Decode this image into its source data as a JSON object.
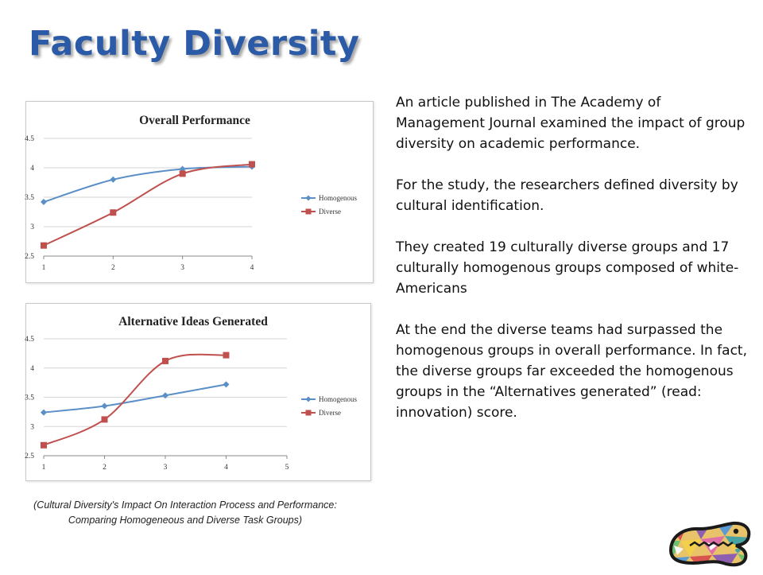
{
  "slide": {
    "title": "Faculty Diversity",
    "paragraphs": [
      "An article published in The Academy of Management Journal examined the impact of group diversity on academic performance.",
      "For the study, the researchers defined diversity by cultural identification.",
      "They created 19 culturally diverse groups and 17 culturally homogenous groups composed of white-Americans",
      "At the end the diverse teams had surpassed the homogenous groups in overall performance.  In fact, the diverse groups far exceeded the homogenous groups in the “Alternatives generated” (read: innovation) score."
    ],
    "caption": "(Cultural Diversity's Impact On Interaction Process and Performance: Comparing Homogeneous and Diverse Task Groups)",
    "logo_icon": "gator-mosaic-logo"
  },
  "chart_data": [
    {
      "type": "line",
      "title": "Overall Performance",
      "xlabel": "",
      "ylabel": "",
      "x": [
        1,
        2,
        3,
        4
      ],
      "xlim": [
        1,
        4
      ],
      "ylim": [
        2.5,
        4.5
      ],
      "xticks": [
        "1",
        "2",
        "3",
        "4"
      ],
      "yticks": [
        "2.5",
        "3",
        "3.5",
        "4",
        "4.5"
      ],
      "grid": "horizontal",
      "legend": "right",
      "series": [
        {
          "name": "Homogenous",
          "values": [
            3.42,
            3.8,
            3.98,
            4.02
          ],
          "color": "#5b8fc7",
          "marker": "diamond"
        },
        {
          "name": "Diverse",
          "values": [
            2.68,
            3.24,
            3.9,
            4.06
          ],
          "color": "#c0504d",
          "marker": "square"
        }
      ]
    },
    {
      "type": "line",
      "title": "Alternative Ideas Generated",
      "xlabel": "",
      "ylabel": "",
      "x": [
        1,
        2,
        3,
        4
      ],
      "xlim": [
        1,
        5
      ],
      "ylim": [
        2.5,
        4.5
      ],
      "xticks": [
        "1",
        "2",
        "3",
        "4",
        "5"
      ],
      "yticks": [
        "2.5",
        "3",
        "3.5",
        "4",
        "4.5"
      ],
      "grid": "horizontal",
      "legend": "right",
      "series": [
        {
          "name": "Homogenous",
          "values": [
            3.24,
            3.35,
            3.53,
            3.72
          ],
          "color": "#5b8fc7",
          "marker": "diamond"
        },
        {
          "name": "Diverse",
          "values": [
            2.68,
            3.12,
            4.12,
            4.22
          ],
          "color": "#c0504d",
          "marker": "square"
        }
      ]
    }
  ]
}
